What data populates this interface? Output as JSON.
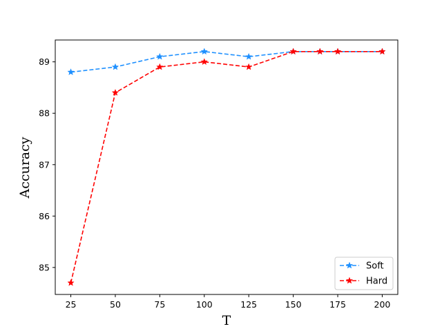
{
  "chart_data": {
    "type": "line",
    "title": "",
    "xlabel": "T",
    "ylabel": "Accuracy",
    "x": [
      25,
      50,
      75,
      100,
      125,
      150,
      165,
      175,
      200
    ],
    "xticks": [
      25,
      50,
      75,
      100,
      125,
      150,
      175,
      200
    ],
    "yticks": [
      85,
      86,
      87,
      88,
      89
    ],
    "xlim": [
      16.25,
      208.75
    ],
    "ylim": [
      84.475,
      89.425
    ],
    "grid": false,
    "legend_position": "lower-right",
    "series": [
      {
        "name": "Soft",
        "color": "#1e90ff",
        "linestyle": "dashed",
        "marker": "star",
        "values": [
          88.8,
          88.9,
          89.1,
          89.2,
          89.1,
          89.2,
          89.2,
          89.2,
          89.2
        ]
      },
      {
        "name": "Hard",
        "color": "#ff0000",
        "linestyle": "dashed",
        "marker": "star",
        "values": [
          84.7,
          88.4,
          88.9,
          89.0,
          88.9,
          89.2,
          89.2,
          89.2,
          89.2
        ]
      }
    ]
  }
}
